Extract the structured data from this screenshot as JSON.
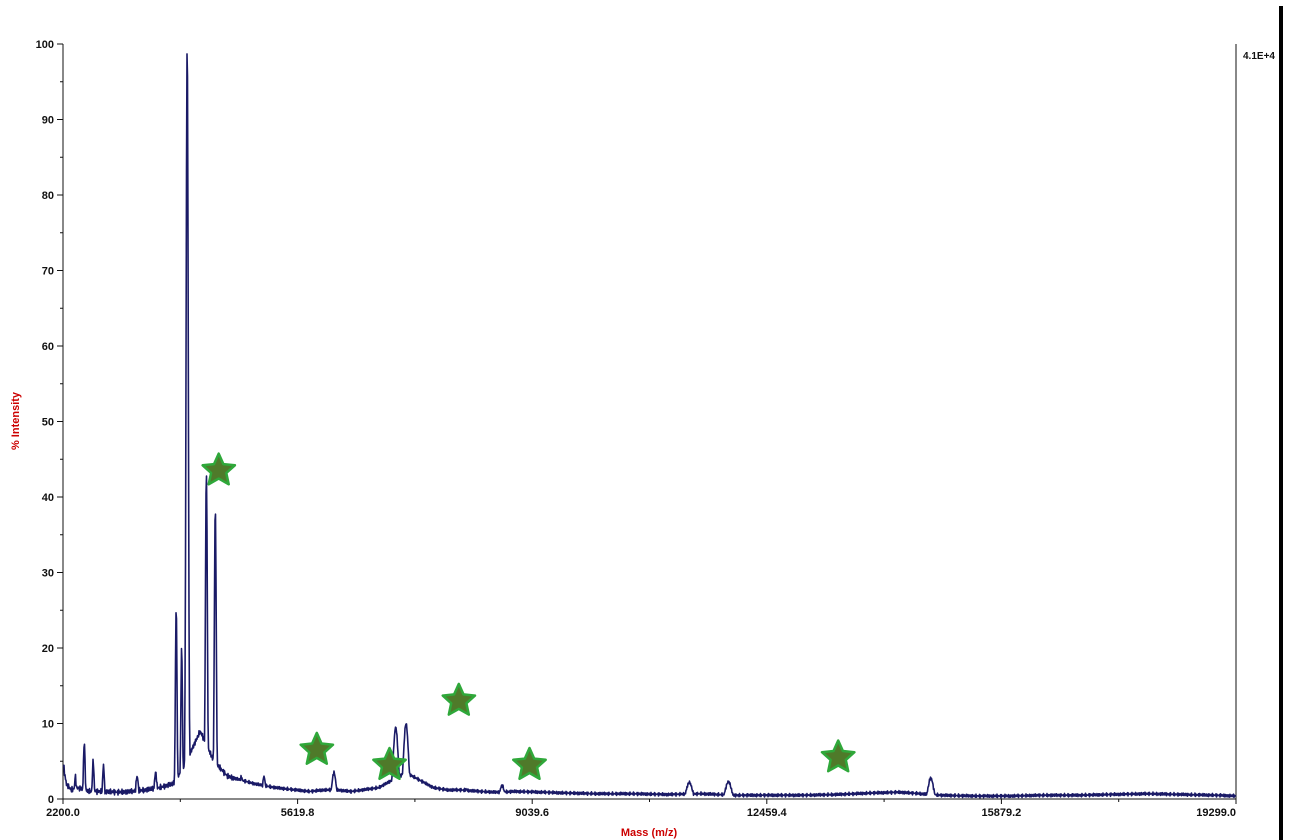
{
  "chart_data": {
    "type": "line",
    "title": "",
    "xlabel": "Mass (m/z)",
    "ylabel": "% Intensity",
    "xlim": [
      2200.0,
      19299.0
    ],
    "ylim": [
      0,
      100
    ],
    "x_ticks": [
      "2200.0",
      "5619.8",
      "9039.6",
      "12459.4",
      "15879.2",
      "19299.0"
    ],
    "y_ticks": [
      "0",
      "10",
      "20",
      "30",
      "40",
      "50",
      "60",
      "70",
      "80",
      "90",
      "100"
    ],
    "intensity_scale": "4.1E+4",
    "grid": false,
    "legend": "none",
    "colors": {
      "line": "#1a1a66",
      "peak_highlight": "#8080a0",
      "axis": "#111111",
      "axis_title": "#cc0000",
      "marker_fill": "#4f7a2a",
      "marker_stroke": "#2fa83a",
      "right_bar": "#000000"
    },
    "baseline": [
      [
        2200,
        4.5
      ],
      [
        2250,
        2.0
      ],
      [
        2320,
        1.2
      ],
      [
        2400,
        1.5
      ],
      [
        2600,
        1.0
      ],
      [
        2800,
        1.0
      ],
      [
        3000,
        0.9
      ],
      [
        3200,
        1.0
      ],
      [
        3400,
        1.2
      ],
      [
        3600,
        1.5
      ],
      [
        3800,
        2.0
      ],
      [
        3950,
        4.0
      ],
      [
        4200,
        9.0
      ],
      [
        4300,
        7.0
      ],
      [
        4400,
        5.0
      ],
      [
        4600,
        3.0
      ],
      [
        4800,
        2.5
      ],
      [
        5000,
        2.0
      ],
      [
        5300,
        1.5
      ],
      [
        5600,
        1.2
      ],
      [
        5800,
        1.0
      ],
      [
        6000,
        1.2
      ],
      [
        6200,
        1.2
      ],
      [
        6400,
        1.0
      ],
      [
        6800,
        1.5
      ],
      [
        7000,
        2.5
      ],
      [
        7200,
        3.5
      ],
      [
        7600,
        1.5
      ],
      [
        7800,
        1.2
      ],
      [
        8000,
        1.2
      ],
      [
        8300,
        1.0
      ],
      [
        8500,
        0.9
      ],
      [
        8800,
        1.0
      ],
      [
        9200,
        0.9
      ],
      [
        9500,
        0.8
      ],
      [
        10000,
        0.7
      ],
      [
        10500,
        0.7
      ],
      [
        11000,
        0.6
      ],
      [
        11500,
        0.7
      ],
      [
        12000,
        0.5
      ],
      [
        12500,
        0.5
      ],
      [
        13000,
        0.5
      ],
      [
        13500,
        0.6
      ],
      [
        14000,
        0.8
      ],
      [
        14400,
        0.9
      ],
      [
        14700,
        0.7
      ],
      [
        15000,
        0.5
      ],
      [
        15500,
        0.4
      ],
      [
        16000,
        0.4
      ],
      [
        16500,
        0.5
      ],
      [
        17000,
        0.5
      ],
      [
        17500,
        0.6
      ],
      [
        18000,
        0.7
      ],
      [
        18500,
        0.6
      ],
      [
        19000,
        0.5
      ],
      [
        19299,
        0.4
      ]
    ],
    "peaks": [
      {
        "mass": 2210,
        "intensity": 4.5,
        "width": 12
      },
      {
        "mass": 2380,
        "intensity": 3.0,
        "width": 12
      },
      {
        "mass": 2510,
        "intensity": 7.5,
        "width": 12
      },
      {
        "mass": 2640,
        "intensity": 5.0,
        "width": 12
      },
      {
        "mass": 2790,
        "intensity": 4.5,
        "width": 12
      },
      {
        "mass": 3280,
        "intensity": 3.0,
        "width": 18
      },
      {
        "mass": 3550,
        "intensity": 3.5,
        "width": 18
      },
      {
        "mass": 3850,
        "intensity": 25.5,
        "width": 12
      },
      {
        "mass": 3930,
        "intensity": 20.0,
        "width": 12
      },
      {
        "mass": 4010,
        "intensity": 100.0,
        "width": 16
      },
      {
        "mass": 4290,
        "intensity": 43.5,
        "width": 14
      },
      {
        "mass": 4420,
        "intensity": 38.5,
        "width": 14
      },
      {
        "mass": 4800,
        "intensity": 3.0,
        "width": 20
      },
      {
        "mass": 5130,
        "intensity": 3.0,
        "width": 20
      },
      {
        "mass": 6150,
        "intensity": 3.5,
        "width": 28
      },
      {
        "mass": 7050,
        "intensity": 9.5,
        "width": 35
      },
      {
        "mass": 7200,
        "intensity": 10.0,
        "width": 35
      },
      {
        "mass": 8080,
        "intensity": 1.3,
        "width": 25
      },
      {
        "mass": 8600,
        "intensity": 1.8,
        "width": 30
      },
      {
        "mass": 11330,
        "intensity": 2.2,
        "width": 40
      },
      {
        "mass": 11900,
        "intensity": 2.3,
        "width": 40
      },
      {
        "mass": 14850,
        "intensity": 2.8,
        "width": 35
      }
    ],
    "markers": [
      {
        "mass": 4470,
        "intensity": 43.5
      },
      {
        "mass": 5900,
        "intensity": 6.5
      },
      {
        "mass": 6960,
        "intensity": 4.5
      },
      {
        "mass": 7970,
        "intensity": 13.0
      },
      {
        "mass": 9000,
        "intensity": 4.5
      },
      {
        "mass": 13500,
        "intensity": 5.5
      }
    ]
  }
}
